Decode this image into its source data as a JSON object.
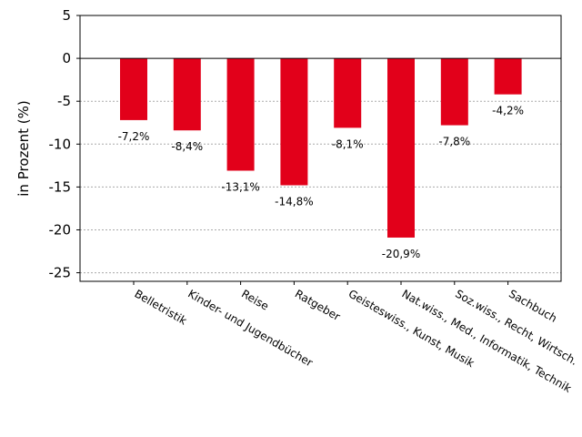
{
  "chart_data": {
    "type": "bar",
    "categories": [
      "Belletristik",
      "Kinder- und Jugendbücher",
      "Reise",
      "Ratgeber",
      "Geisteswiss., Kunst, Musik",
      "Nat.wiss., Med., Informatik, Technik",
      "Soz.wiss., Recht, Wirtsch.",
      "Sachbuch"
    ],
    "values": [
      -7.2,
      -8.4,
      -13.1,
      -14.8,
      -8.1,
      -20.9,
      -7.8,
      -4.2
    ],
    "data_labels": [
      "-7,2%",
      "-8,4%",
      "-13,1%",
      "-14,8%",
      "-8,1%",
      "-20,9%",
      "-7,8%",
      "-4,2%"
    ],
    "ylabel": "in Prozent (%)",
    "ylim": [
      -26,
      5
    ],
    "yticks": [
      5,
      0,
      -5,
      -10,
      -15,
      -20,
      -25
    ],
    "ytick_labels": [
      "5",
      "0",
      "-5",
      "-10",
      "-15",
      "-20",
      "-25"
    ],
    "grid": "horizontal dotted",
    "bar_color": "#e2001a",
    "zero_line": true
  }
}
